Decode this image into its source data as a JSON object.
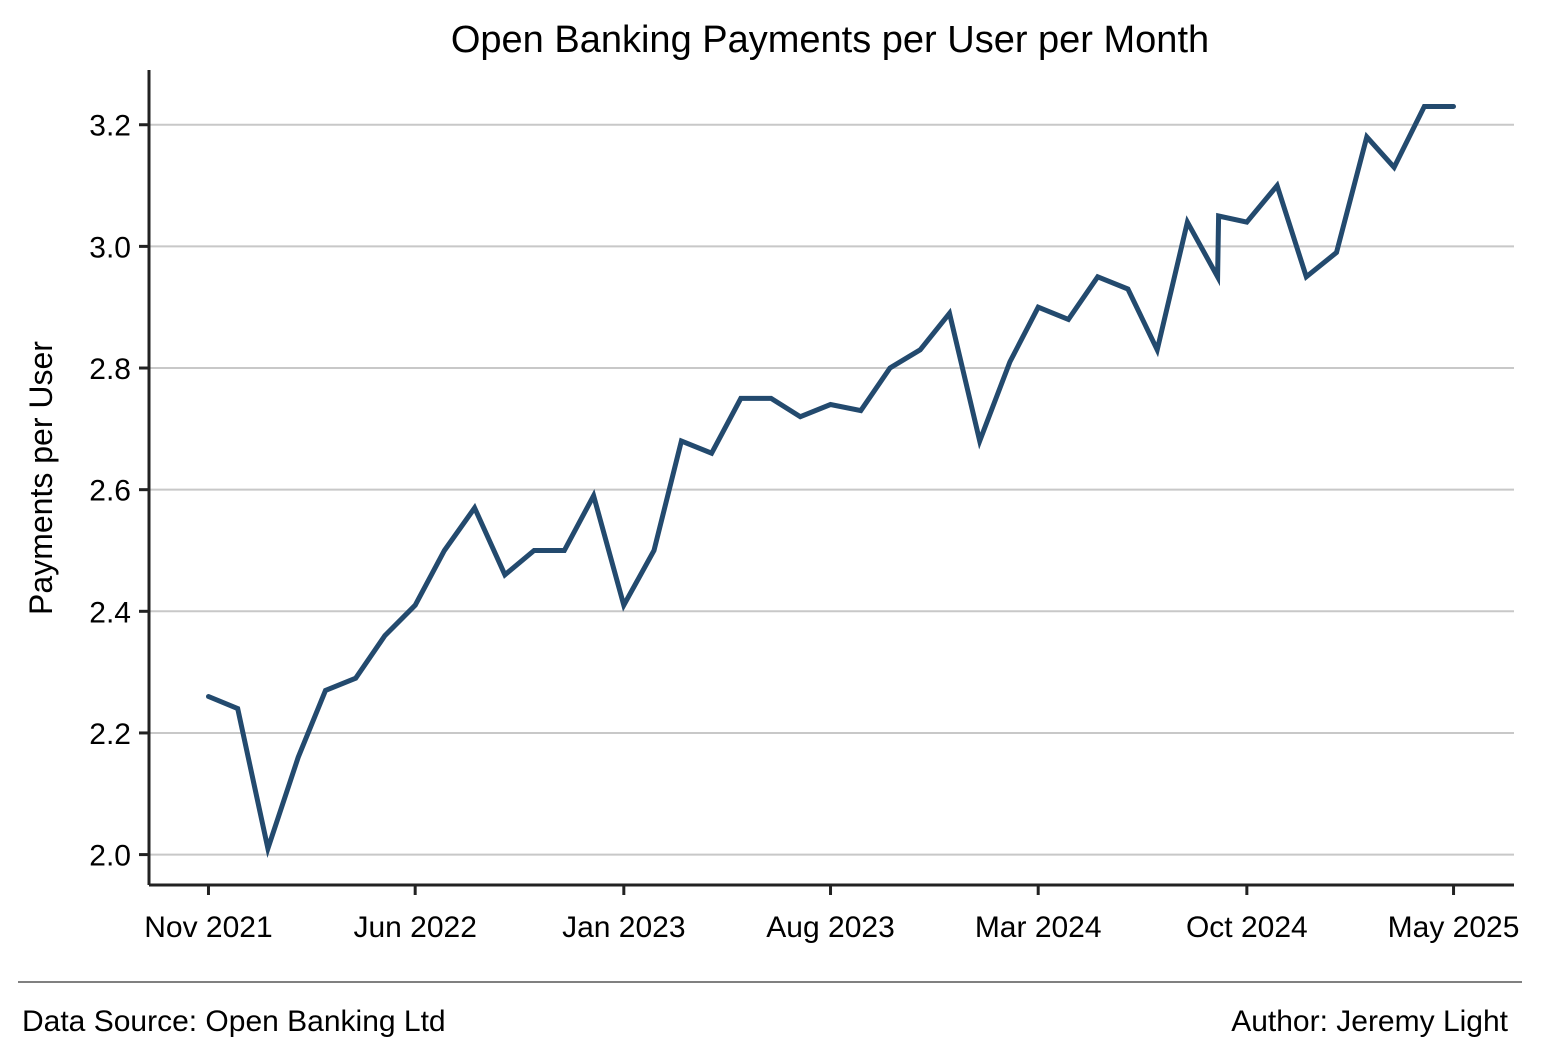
{
  "chart_data": {
    "type": "line",
    "title": "Open Banking Payments per User per Month",
    "xlabel": "",
    "ylabel": "Payments per User",
    "ylim": [
      1.95,
      3.29
    ],
    "yticks": [
      2.0,
      2.2,
      2.4,
      2.6,
      2.8,
      3.0,
      3.2
    ],
    "ytick_labels": [
      "2.0",
      "2.2",
      "2.4",
      "2.6",
      "2.8",
      "3.0",
      "3.2"
    ],
    "xlim": [
      "2021-09-01",
      "2025-07-02"
    ],
    "xticks": [
      "2021-11-01",
      "2022-06-01",
      "2023-01-01",
      "2023-08-01",
      "2024-03-01",
      "2024-10-01",
      "2025-05-01"
    ],
    "xtick_labels": [
      "Nov 2021",
      "Jun 2022",
      "Jan 2023",
      "Aug 2023",
      "Mar 2024",
      "Oct 2024",
      "May 2025"
    ],
    "grid": "horizontal",
    "line_color": "#234a6e",
    "series": [
      {
        "x": [
          "2021-11-01",
          "2021-12-01",
          "2022-01-01",
          "2022-02-01",
          "2022-03-01",
          "2022-04-01",
          "2022-05-01",
          "2022-06-01",
          "2022-07-01",
          "2022-08-01",
          "2022-09-01",
          "2022-10-01",
          "2022-11-01",
          "2022-12-01",
          "2023-01-01",
          "2023-02-01",
          "2023-03-01",
          "2023-04-01",
          "2023-05-01",
          "2023-06-01",
          "2023-07-01",
          "2023-08-01",
          "2023-09-01",
          "2023-10-01",
          "2023-11-01",
          "2023-12-01",
          "2024-01-01",
          "2024-02-01",
          "2024-03-01",
          "2024-04-01",
          "2024-05-01",
          "2024-06-01",
          "2024-07-01",
          "2024-08-01",
          "2024-09-01",
          "2024-09-02",
          "2024-10-01",
          "2024-11-01",
          "2024-12-01",
          "2025-01-01",
          "2025-02-01",
          "2025-03-01",
          "2025-04-01",
          "2025-05-01"
        ],
        "values": [
          2.26,
          2.24,
          2.01,
          2.16,
          2.27,
          2.29,
          2.36,
          2.41,
          2.5,
          2.57,
          2.46,
          2.5,
          2.5,
          2.59,
          2.41,
          2.5,
          2.68,
          2.66,
          2.75,
          2.75,
          2.72,
          2.74,
          2.73,
          2.8,
          2.83,
          2.89,
          2.68,
          2.81,
          2.9,
          2.88,
          2.95,
          2.93,
          2.83,
          3.04,
          2.95,
          3.05,
          3.04,
          3.1,
          2.95,
          2.99,
          3.18,
          3.13,
          3.23,
          3.23
        ]
      }
    ]
  },
  "footer": {
    "source": "Data Source: Open Banking Ltd",
    "author": "Author: Jeremy Light"
  }
}
